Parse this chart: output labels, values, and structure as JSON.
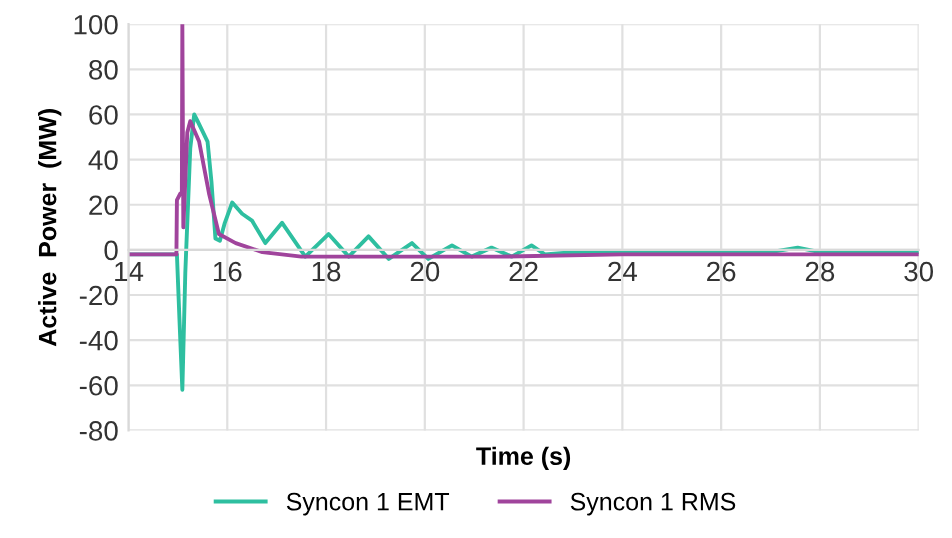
{
  "chart_data": {
    "type": "line",
    "xlabel": "Time (s)",
    "ylabel": "Active  Power  (MW)",
    "xlim": [
      14,
      30
    ],
    "xticks": [
      14,
      16,
      18,
      20,
      22,
      24,
      26,
      28,
      30
    ],
    "ylim": [
      -80,
      100
    ],
    "yticks": [
      -80,
      -60,
      -40,
      -20,
      0,
      20,
      40,
      60,
      80,
      100
    ],
    "grid": true,
    "legend": "bottom",
    "marker": "none",
    "line_style": "solid",
    "series": [
      {
        "name": "Syncon 1 EMT",
        "color": "#2ebfa0",
        "x": [
          14,
          14.98,
          15.03,
          15.09,
          15.15,
          15.25,
          15.33,
          15.4,
          15.49,
          15.6,
          15.68,
          15.76,
          15.85,
          15.95,
          16.1,
          16.3,
          16.5,
          16.77,
          17.11,
          17.58,
          18.05,
          18.46,
          18.86,
          19.27,
          19.74,
          20.07,
          20.55,
          20.95,
          21.35,
          21.76,
          22.16,
          22.43,
          23,
          24,
          25,
          26,
          27,
          27.55,
          28,
          29,
          30
        ],
        "values": [
          -2,
          -2,
          -30,
          -62,
          -10,
          45,
          60,
          57,
          53,
          48,
          30,
          5,
          4,
          12,
          21,
          16,
          13,
          3,
          12,
          -3,
          7,
          -3,
          6,
          -4,
          3,
          -4,
          2,
          -3,
          1,
          -3,
          2,
          -2,
          -1,
          -1,
          -1,
          -1,
          -1,
          1,
          -1,
          -1,
          -1
        ]
      },
      {
        "name": "Syncon 1 RMS",
        "color": "#a0449c",
        "x": [
          14,
          14.97,
          14.98,
          15.05,
          15.08,
          15.09,
          15.11,
          15.19,
          15.25,
          15.43,
          15.63,
          15.83,
          16.17,
          16.71,
          17.5,
          18.86,
          21.5,
          24,
          30
        ],
        "values": [
          -2,
          -2,
          22,
          25,
          25,
          100,
          10,
          52,
          57,
          48,
          25,
          7,
          3,
          -1,
          -3,
          -3,
          -3,
          -2,
          -2
        ]
      }
    ]
  }
}
